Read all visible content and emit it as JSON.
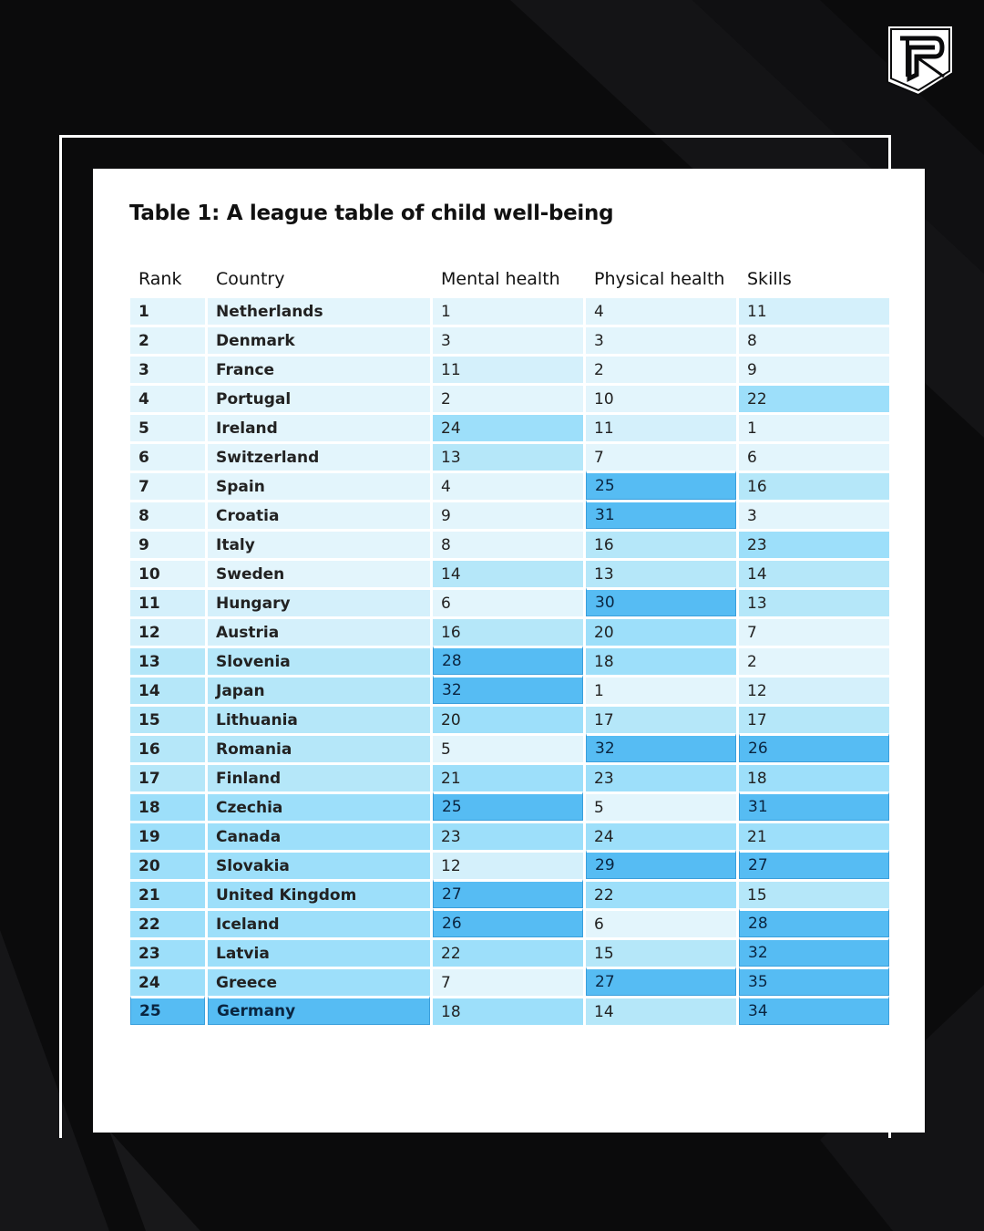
{
  "brand": {
    "logo_name": "p-logo"
  },
  "table": {
    "title": "Table 1: A league table of child well-being",
    "columns": [
      "Rank",
      "Country",
      "Mental health",
      "Physical health",
      "Skills"
    ],
    "rows": [
      {
        "rank": "1",
        "country": "Netherlands",
        "mental": "1",
        "physical": "4",
        "skills": "11"
      },
      {
        "rank": "2",
        "country": "Denmark",
        "mental": "3",
        "physical": "3",
        "skills": "8"
      },
      {
        "rank": "3",
        "country": "France",
        "mental": "11",
        "physical": "2",
        "skills": "9"
      },
      {
        "rank": "4",
        "country": "Portugal",
        "mental": "2",
        "physical": "10",
        "skills": "22"
      },
      {
        "rank": "5",
        "country": "Ireland",
        "mental": "24",
        "physical": "11",
        "skills": "1"
      },
      {
        "rank": "6",
        "country": "Switzerland",
        "mental": "13",
        "physical": "7",
        "skills": "6"
      },
      {
        "rank": "7",
        "country": "Spain",
        "mental": "4",
        "physical": "25",
        "skills": "16"
      },
      {
        "rank": "8",
        "country": "Croatia",
        "mental": "9",
        "physical": "31",
        "skills": "3"
      },
      {
        "rank": "9",
        "country": "Italy",
        "mental": "8",
        "physical": "16",
        "skills": "23"
      },
      {
        "rank": "10",
        "country": "Sweden",
        "mental": "14",
        "physical": "13",
        "skills": "14"
      },
      {
        "rank": "11",
        "country": "Hungary",
        "mental": "6",
        "physical": "30",
        "skills": "13"
      },
      {
        "rank": "12",
        "country": "Austria",
        "mental": "16",
        "physical": "20",
        "skills": "7"
      },
      {
        "rank": "13",
        "country": "Slovenia",
        "mental": "28",
        "physical": "18",
        "skills": "2"
      },
      {
        "rank": "14",
        "country": "Japan",
        "mental": "32",
        "physical": "1",
        "skills": "12"
      },
      {
        "rank": "15",
        "country": "Lithuania",
        "mental": "20",
        "physical": "17",
        "skills": "17"
      },
      {
        "rank": "16",
        "country": "Romania",
        "mental": "5",
        "physical": "32",
        "skills": "26"
      },
      {
        "rank": "17",
        "country": "Finland",
        "mental": "21",
        "physical": "23",
        "skills": "18"
      },
      {
        "rank": "18",
        "country": "Czechia",
        "mental": "25",
        "physical": "5",
        "skills": "31"
      },
      {
        "rank": "19",
        "country": "Canada",
        "mental": "23",
        "physical": "24",
        "skills": "21"
      },
      {
        "rank": "20",
        "country": "Slovakia",
        "mental": "12",
        "physical": "29",
        "skills": "27"
      },
      {
        "rank": "21",
        "country": "United Kingdom",
        "mental": "27",
        "physical": "22",
        "skills": "15"
      },
      {
        "rank": "22",
        "country": "Iceland",
        "mental": "26",
        "physical": "6",
        "skills": "28"
      },
      {
        "rank": "23",
        "country": "Latvia",
        "mental": "22",
        "physical": "15",
        "skills": "32"
      },
      {
        "rank": "24",
        "country": "Greece",
        "mental": "7",
        "physical": "27",
        "skills": "35"
      },
      {
        "rank": "25",
        "country": "Germany",
        "mental": "18",
        "physical": "14",
        "skills": "34"
      }
    ]
  },
  "colors": {
    "background": "#0b0b0c",
    "shade_lightest": "#e3f5fc",
    "shade_light": "#d4f0fb",
    "shade_mid": "#b5e7f9",
    "shade_strong": "#9ddffa",
    "shade_darkest": "#56bcf3"
  }
}
